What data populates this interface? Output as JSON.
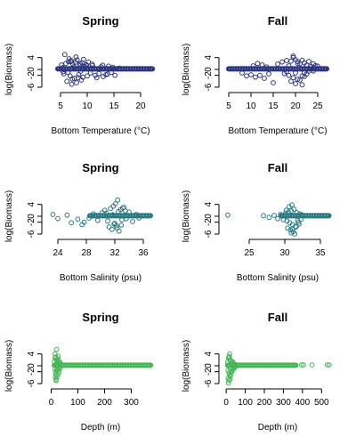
{
  "chart_data": [
    {
      "type": "scatter",
      "title": "Spring",
      "xlabel": "Bottom Temperature (°C)",
      "ylabel": "log(Biomass)",
      "color": "#2e3580",
      "xlim": [
        2.5,
        22.5
      ],
      "ylim": [
        -6,
        6
      ],
      "xticks": [
        5,
        10,
        15,
        20
      ],
      "yticks": [
        -6,
        -2,
        0,
        4
      ],
      "series": [
        {
          "band_x": [
            4.5,
            22.2
          ],
          "band_y": 0.2,
          "x": [
            5.2,
            6.0,
            6.5,
            7.0,
            7.3,
            7.8,
            8.1,
            8.6,
            9.0,
            9.4,
            9.8,
            10.2,
            5.6,
            6.8,
            7.6,
            8.4,
            9.2,
            10.6,
            11.5,
            12.2,
            13.0,
            13.8,
            14.5,
            15.2,
            6.2,
            7.1,
            8.0,
            8.9,
            5.5,
            6.4,
            7.5,
            8.8,
            9.6,
            11.0,
            12.6,
            14.0,
            6.6,
            7.9,
            9.3,
            10.9,
            12.9,
            14.8,
            5.8,
            7.2,
            8.3,
            10.0,
            11.8,
            13.5,
            6.9,
            8.7,
            9.9,
            5.4,
            16.0,
            22.0
          ],
          "y": [
            1.5,
            2.0,
            2.6,
            3.0,
            1.8,
            2.4,
            3.2,
            1.4,
            2.2,
            1.0,
            1.6,
            2.5,
            -1.5,
            -2.2,
            -3.0,
            -1.8,
            -2.6,
            -1.2,
            -2.0,
            -1.4,
            -2.4,
            -1.6,
            -1.0,
            -2.0,
            -4.0,
            -5.0,
            -4.5,
            -3.6,
            -0.8,
            -1.0,
            0.9,
            -0.6,
            0.8,
            1.3,
            0.9,
            1.1,
            3.6,
            4.2,
            3.4,
            1.8,
            1.4,
            0.7,
            5.0,
            -3.2,
            -2.8,
            -2.2,
            -2.8,
            -1.8,
            2.6,
            1.9,
            1.2,
            0.6,
            0.4,
            0.2
          ]
        }
      ]
    },
    {
      "type": "scatter",
      "title": "Fall",
      "xlabel": "Bottom Temperature (°C)",
      "ylabel": "log(Biomass)",
      "color": "#2e3580",
      "xlim": [
        4,
        28
      ],
      "ylim": [
        -6,
        6
      ],
      "xticks": [
        5,
        10,
        15,
        20,
        25
      ],
      "yticks": [
        -6,
        -2,
        0,
        4
      ],
      "series": [
        {
          "band_x": [
            5,
            27
          ],
          "band_y": 0.2,
          "x": [
            8,
            9,
            10,
            11,
            12,
            13,
            14,
            15,
            10.5,
            11.5,
            12.5,
            13.5,
            16,
            17,
            18,
            18.5,
            19,
            19.5,
            20,
            20.5,
            21,
            21.5,
            22,
            22.5,
            23,
            23.5,
            24,
            24.5,
            25,
            17.5,
            18.5,
            19.5,
            20.5,
            21.5,
            22.5,
            19,
            20,
            21,
            22,
            18,
            20,
            22,
            23,
            24,
            19.5,
            20.5,
            21.5
          ],
          "y": [
            -1.2,
            -2.2,
            -1.8,
            -2.6,
            -2.0,
            -3.0,
            -1.5,
            -4.5,
            1.2,
            2.0,
            1.5,
            0.8,
            1.8,
            2.5,
            3.0,
            1.2,
            2.8,
            4.0,
            3.3,
            2.6,
            1.9,
            3.1,
            2.2,
            1.4,
            2.7,
            1.0,
            1.9,
            1.3,
            1.1,
            -1.4,
            -2.0,
            -2.8,
            -3.3,
            -2.2,
            -1.6,
            -4.0,
            -4.8,
            -3.6,
            -2.4,
            -0.8,
            -1.2,
            -1.0,
            -0.6,
            -0.5,
            4.5,
            2.0,
            -5.2
          ]
        }
      ]
    },
    {
      "type": "scatter",
      "title": "Spring",
      "xlabel": "Bottom Salinity (psu)",
      "ylabel": "log(Biomass)",
      "color": "#2a7a80",
      "xlim": [
        22.5,
        37.5
      ],
      "ylim": [
        -6,
        6
      ],
      "xticks": [
        24,
        28,
        32,
        36
      ],
      "yticks": [
        -6,
        -2,
        0,
        4
      ],
      "series": [
        {
          "band_x": [
            28.5,
            37
          ],
          "band_y": 0.2,
          "x": [
            23.3,
            24.0,
            25.3,
            25.9,
            26.8,
            27.4,
            27.7,
            28.4,
            29.0,
            29.6,
            30.2,
            30.6,
            31.0,
            31.4,
            31.8,
            32.0,
            32.2,
            32.5,
            32.8,
            33.0,
            33.3,
            33.6,
            34.0,
            34.5,
            35.0,
            35.4,
            31.2,
            31.6,
            32.1,
            32.6,
            33.1,
            32.4,
            31.9,
            32.9,
            30.8,
            33.5,
            32.3,
            31.7
          ],
          "y": [
            0.6,
            -0.8,
            0.4,
            -2.2,
            -1.0,
            -2.8,
            -2.0,
            -0.6,
            0.8,
            -1.4,
            1.2,
            2.0,
            -1.6,
            2.6,
            3.4,
            -2.4,
            -3.2,
            1.6,
            2.2,
            -1.2,
            3.0,
            -0.8,
            1.4,
            -1.8,
            0.6,
            -0.6,
            -3.6,
            -4.4,
            4.2,
            -5.0,
            2.8,
            5.5,
            -2.6,
            -3.0,
            1.0,
            1.8,
            -4.0,
            0.5
          ]
        }
      ]
    },
    {
      "type": "scatter",
      "title": "Fall",
      "xlabel": "Bottom Salinity (psu)",
      "ylabel": "log(Biomass)",
      "color": "#2a7a80",
      "xlim": [
        21.5,
        36.5
      ],
      "ylim": [
        -6,
        6
      ],
      "xticks": [
        25,
        30,
        35
      ],
      "yticks": [
        -6,
        -2,
        0,
        4
      ],
      "series": [
        {
          "band_x": [
            29.5,
            36.2
          ],
          "band_y": 0.2,
          "x": [
            22.0,
            27.0,
            27.8,
            28.5,
            29.0,
            29.4,
            29.8,
            30.1,
            30.3,
            30.5,
            30.7,
            30.9,
            31.1,
            31.3,
            31.5,
            31.7,
            31.9,
            32.1,
            32.3,
            30.4,
            30.8,
            31.2,
            31.6,
            32.0,
            30.6,
            31.0,
            31.4,
            31.8,
            30.2,
            32.4,
            31.1,
            30.9
          ],
          "y": [
            0.4,
            0.2,
            -0.4,
            0.3,
            -0.8,
            0.6,
            -1.2,
            1.0,
            -1.6,
            1.4,
            -2.2,
            1.8,
            -2.8,
            2.4,
            -3.4,
            1.2,
            -2.0,
            0.8,
            -1.0,
            -4.0,
            -4.6,
            -5.2,
            -3.6,
            -2.6,
            3.2,
            3.8,
            -6.0,
            -1.4,
            2.0,
            0.5,
            -4.4,
            -5.6
          ]
        }
      ]
    },
    {
      "type": "scatter",
      "title": "Spring",
      "xlabel": "Depth (m)",
      "ylabel": "log(Biomass)",
      "color": "#45b555",
      "xlim": [
        -15,
        385
      ],
      "ylim": [
        -6,
        6
      ],
      "xticks": [
        0,
        100,
        200,
        300
      ],
      "yticks": [
        -6,
        -2,
        0,
        4
      ],
      "series": [
        {
          "band_x": [
            12,
            372
          ],
          "band_y": 0.2,
          "x": [
            12,
            14,
            15,
            16,
            17,
            18,
            19,
            20,
            22,
            24,
            25,
            26,
            28,
            30,
            32,
            35,
            16,
            18,
            20,
            14,
            22,
            26,
            30,
            34,
            19,
            21,
            23
          ],
          "y": [
            1.4,
            -1.0,
            2.6,
            -2.2,
            3.0,
            -3.0,
            2.0,
            -1.6,
            1.2,
            -0.8,
            2.4,
            -2.8,
            1.6,
            -1.2,
            0.8,
            -0.6,
            -4.0,
            -5.0,
            5.5,
            4.0,
            -3.6,
            3.2,
            -2.0,
            1.0,
            -4.6,
            0.5,
            -1.4
          ]
        }
      ]
    },
    {
      "type": "scatter",
      "title": "Fall",
      "xlabel": "Depth (m)",
      "ylabel": "log(Biomass)",
      "color": "#45b555",
      "xlim": [
        -10,
        550
      ],
      "ylim": [
        -6,
        6
      ],
      "xticks": [
        0,
        100,
        200,
        300,
        400,
        500
      ],
      "yticks": [
        -6,
        -2,
        0,
        4
      ],
      "series": [
        {
          "band_x": [
            8,
            365
          ],
          "band_y": 0.2,
          "x": [
            8,
            10,
            12,
            14,
            16,
            18,
            20,
            22,
            24,
            26,
            28,
            30,
            34,
            38,
            42,
            46,
            50,
            10,
            14,
            18,
            22,
            26,
            12,
            16,
            20,
            30,
            36,
            44,
            395,
            405,
            450,
            530,
            540
          ],
          "y": [
            1.2,
            -1.6,
            2.6,
            -2.4,
            3.2,
            -3.2,
            2.0,
            -1.0,
            1.6,
            -2.0,
            0.8,
            -0.8,
            1.4,
            -1.2,
            0.6,
            -0.6,
            0.4,
            -4.2,
            -5.0,
            4.0,
            -3.6,
            -2.8,
            -5.8,
            2.8,
            -4.6,
            -1.8,
            1.0,
            -0.4,
            0.3,
            0.3,
            0.3,
            0.3,
            0.3
          ]
        }
      ]
    }
  ]
}
